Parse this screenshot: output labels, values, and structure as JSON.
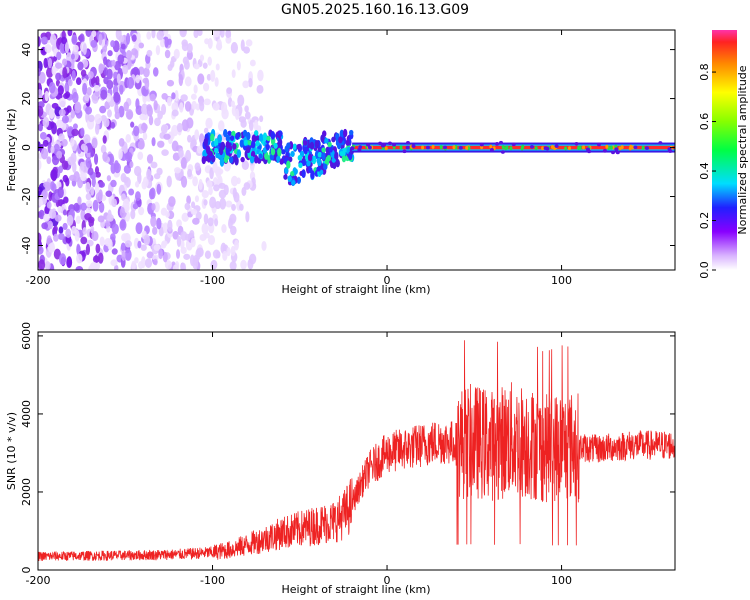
{
  "title": "GN05.2025.160.16.13.G09",
  "chart_data": [
    {
      "type": "heatmap",
      "xlabel": "Height of straight line (km)",
      "ylabel": "Frequency (Hz)",
      "xlim": [
        -200,
        165
      ],
      "ylim": [
        -50,
        48
      ],
      "xticks": [
        "-200",
        "-100",
        "0",
        "100"
      ],
      "yticks": [
        "-40",
        "-20",
        "0",
        "20",
        "40"
      ],
      "colorbar": {
        "label": "Normalized spectral amplitude",
        "range": [
          0,
          0.97
        ],
        "ticks": [
          "0.0",
          "0.2",
          "0.4",
          "0.6",
          "0.8"
        ]
      },
      "features": [
        {
          "segment": "broadband noise",
          "x_range": [
            -200,
            -70
          ],
          "frequency_range": [
            -50,
            48
          ]
        },
        {
          "segment": "noisy tone",
          "x_range": [
            -105,
            -20
          ],
          "frequency_range": [
            -15,
            8
          ]
        },
        {
          "segment": "steady tone",
          "x_range": [
            -20,
            165
          ],
          "frequency": 0,
          "amplitude": 0.95
        }
      ]
    },
    {
      "type": "line",
      "xlabel": "Height of straight line (km)",
      "ylabel": "SNR (10 * v/v)",
      "xlim": [
        -200,
        165
      ],
      "ylim": [
        0,
        6100
      ],
      "xticks": [
        "-200",
        "-100",
        "0",
        "100"
      ],
      "yticks": [
        "0",
        "2000",
        "4000",
        "6000"
      ],
      "color": "#ee2222",
      "series": [
        {
          "x": [
            -200,
            -180,
            -160,
            -140,
            -120,
            -100,
            -90,
            -80,
            -70,
            -60,
            -50,
            -40,
            -30,
            -25,
            -20,
            -15,
            -10,
            -5,
            0,
            10,
            20,
            30,
            40,
            50,
            60,
            70,
            80,
            90,
            100,
            110,
            120,
            130,
            140,
            150,
            165
          ],
          "values": [
            350,
            360,
            370,
            380,
            400,
            450,
            520,
            650,
            800,
            950,
            1050,
            1150,
            1250,
            1400,
            1700,
            2200,
            2600,
            2800,
            3000,
            3100,
            3200,
            3300,
            3250,
            3300,
            3200,
            3350,
            3300,
            3100,
            3200,
            3150,
            3100,
            3150,
            3200,
            3200,
            3200
          ]
        }
      ]
    }
  ]
}
